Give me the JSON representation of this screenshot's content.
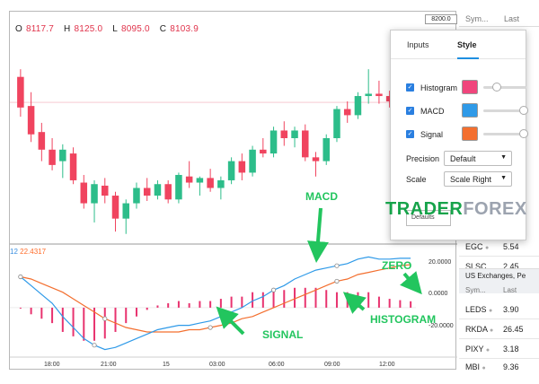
{
  "ohlc": {
    "o_label": "O",
    "o": "8117.7",
    "h_label": "H",
    "h": "8125.0",
    "l_label": "L",
    "l": "8095.0",
    "c_label": "C",
    "c": "8103.9"
  },
  "price_axis": {
    "top": "8200.0"
  },
  "macd_header": {
    "params": "12",
    "value": "22.4317"
  },
  "macd_axis": [
    "20.0000",
    "0.0000",
    "-20.0000"
  ],
  "time_axis": [
    "18:00",
    "21:00",
    "15",
    "03:00",
    "06:00",
    "09:00",
    "12:00"
  ],
  "sidebar": {
    "col_symbol": "Sym...",
    "col_last": "Last",
    "rows_top": [
      {
        "sym": "EGC",
        "last": "5.54"
      },
      {
        "sym": "SLSC",
        "last": "2.45"
      }
    ],
    "exchange_title": "US Exchanges, Pe",
    "rows_bottom": [
      {
        "sym": "LEDS",
        "last": "3.90"
      },
      {
        "sym": "RKDA",
        "last": "26.45"
      },
      {
        "sym": "PIXY",
        "last": "3.18"
      },
      {
        "sym": "MBI",
        "last": "9.36"
      }
    ]
  },
  "dialog": {
    "tab_inputs": "Inputs",
    "tab_style": "Style",
    "options": [
      {
        "label": "Histogram",
        "color": "#f0457c"
      },
      {
        "label": "MACD",
        "color": "#2f9ae8"
      },
      {
        "label": "Signal",
        "color": "#f36f2f"
      }
    ],
    "precision_label": "Precision",
    "precision_value": "Default",
    "scale_label": "Scale",
    "scale_value": "Scale Right",
    "defaults_label": "Defaults"
  },
  "watermark": {
    "part_a": "TRADER",
    "part_b": "FOREX"
  },
  "annotations": {
    "macd": "MACD",
    "zero": "ZERO",
    "signal": "SIGNAL",
    "histogram": "HISTOGRAM"
  },
  "colors": {
    "up": "#2dbd8a",
    "down": "#f0445f",
    "macd_line": "#2f9ae8",
    "signal_line": "#f36f2f",
    "histogram": "#e8336f",
    "annotation": "#22c55e"
  },
  "chart_data": {
    "type": "candlestick",
    "candles": [
      {
        "o": 8150,
        "h": 8160,
        "l": 8098,
        "c": 8110
      },
      {
        "o": 8112,
        "h": 8130,
        "l": 8065,
        "c": 8075
      },
      {
        "o": 8078,
        "h": 8090,
        "l": 8040,
        "c": 8055
      },
      {
        "o": 8055,
        "h": 8070,
        "l": 8028,
        "c": 8035
      },
      {
        "o": 8040,
        "h": 8062,
        "l": 8018,
        "c": 8055
      },
      {
        "o": 8050,
        "h": 8058,
        "l": 8010,
        "c": 8015
      },
      {
        "o": 8012,
        "h": 8022,
        "l": 7978,
        "c": 7985
      },
      {
        "o": 7985,
        "h": 8015,
        "l": 7960,
        "c": 8010
      },
      {
        "o": 8008,
        "h": 8018,
        "l": 7985,
        "c": 7995
      },
      {
        "o": 7995,
        "h": 8000,
        "l": 7948,
        "c": 7965
      },
      {
        "o": 7965,
        "h": 7990,
        "l": 7945,
        "c": 7985
      },
      {
        "o": 7985,
        "h": 8012,
        "l": 7978,
        "c": 8005
      },
      {
        "o": 8005,
        "h": 8018,
        "l": 7988,
        "c": 7995
      },
      {
        "o": 7995,
        "h": 8015,
        "l": 7990,
        "c": 8010
      },
      {
        "o": 8010,
        "h": 8015,
        "l": 7985,
        "c": 7990
      },
      {
        "o": 7990,
        "h": 8025,
        "l": 7985,
        "c": 8022
      },
      {
        "o": 8020,
        "h": 8040,
        "l": 8005,
        "c": 8012
      },
      {
        "o": 8012,
        "h": 8020,
        "l": 7995,
        "c": 8018
      },
      {
        "o": 8018,
        "h": 8030,
        "l": 8000,
        "c": 8005
      },
      {
        "o": 8005,
        "h": 8020,
        "l": 7990,
        "c": 8015
      },
      {
        "o": 8015,
        "h": 8045,
        "l": 8010,
        "c": 8040
      },
      {
        "o": 8040,
        "h": 8050,
        "l": 8015,
        "c": 8025
      },
      {
        "o": 8025,
        "h": 8060,
        "l": 8020,
        "c": 8055
      },
      {
        "o": 8055,
        "h": 8070,
        "l": 8045,
        "c": 8050
      },
      {
        "o": 8050,
        "h": 8085,
        "l": 8045,
        "c": 8080
      },
      {
        "o": 8080,
        "h": 8092,
        "l": 8060,
        "c": 8070
      },
      {
        "o": 8070,
        "h": 8085,
        "l": 8058,
        "c": 8080
      },
      {
        "o": 8080,
        "h": 8088,
        "l": 8040,
        "c": 8045
      },
      {
        "o": 8045,
        "h": 8052,
        "l": 8020,
        "c": 8040
      },
      {
        "o": 8040,
        "h": 8075,
        "l": 8035,
        "c": 8070
      },
      {
        "o": 8070,
        "h": 8112,
        "l": 8065,
        "c": 8108
      },
      {
        "o": 8108,
        "h": 8118,
        "l": 8090,
        "c": 8100
      },
      {
        "o": 8100,
        "h": 8130,
        "l": 8095,
        "c": 8125
      },
      {
        "o": 8125,
        "h": 8160,
        "l": 8115,
        "c": 8128
      },
      {
        "o": 8128,
        "h": 8145,
        "l": 8115,
        "c": 8125
      },
      {
        "o": 8125,
        "h": 8132,
        "l": 8110,
        "c": 8118
      },
      {
        "o": 8118,
        "h": 8125,
        "l": 8110,
        "c": 8120
      },
      {
        "o": 8117.7,
        "h": 8125.0,
        "l": 8095.0,
        "c": 8103.9
      }
    ],
    "price_range": [
      7940,
      8200
    ],
    "macd_range": [
      -22,
      26
    ],
    "macd": [
      14,
      10,
      6,
      2,
      -4,
      -9,
      -14,
      -17,
      -19,
      -18,
      -16,
      -14,
      -12,
      -10,
      -9,
      -8,
      -8,
      -7,
      -6,
      -4,
      -2,
      0,
      3,
      5,
      8,
      10,
      13,
      15,
      17,
      18,
      19,
      20,
      22,
      23,
      22,
      22,
      22.4,
      22.4
    ],
    "signal": [
      14,
      13,
      11,
      9,
      7,
      4,
      1,
      -2,
      -5,
      -7,
      -9,
      -10,
      -11,
      -11,
      -11,
      -11,
      -10,
      -10,
      -9,
      -8,
      -7,
      -5,
      -4,
      -2,
      0,
      2,
      4,
      6,
      8,
      10,
      12,
      13,
      15,
      16,
      17,
      18,
      19,
      19.5
    ],
    "histogram": [
      0,
      -3,
      -5,
      -7,
      -11,
      -13,
      -15,
      -15,
      -14,
      -11,
      -7,
      -4,
      -1,
      1,
      2,
      3,
      2,
      3,
      3,
      4,
      5,
      5,
      7,
      7,
      8,
      8,
      9,
      9,
      9,
      8,
      7,
      7,
      7,
      7,
      5,
      4,
      3.4,
      2.9
    ]
  }
}
